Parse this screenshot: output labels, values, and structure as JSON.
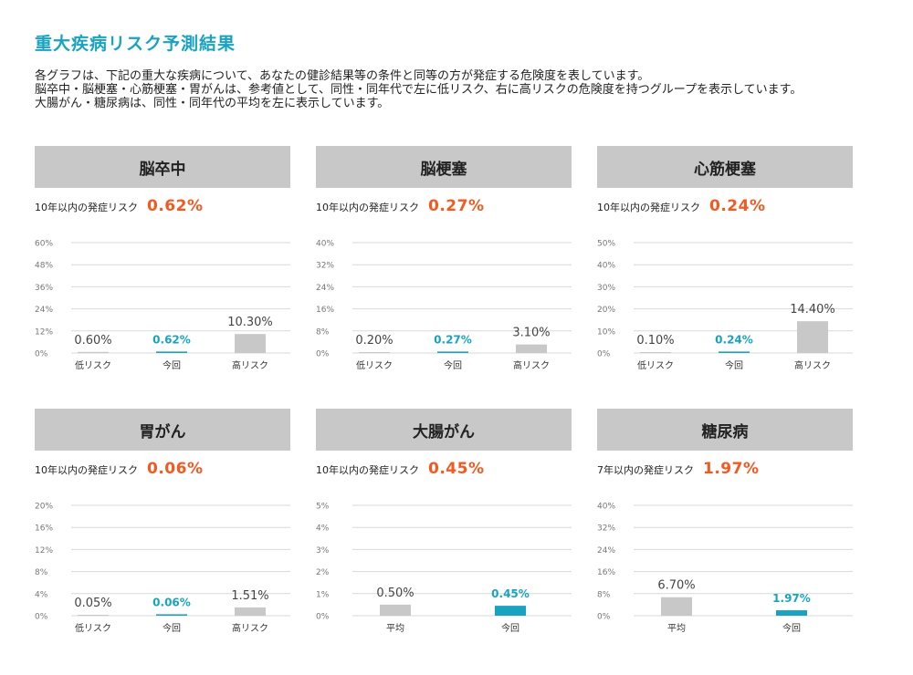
{
  "title": "重大疾病リスク予測結果",
  "description": [
    "各グラフは、下記の重大な疾病について、あなたの健診結果等の条件と同等の方が発症する危険度を表しています。",
    "脳卒中・脳梗塞・心筋梗塞・胃がんは、参考値として、同性・同年代で左に低リスク、右に高リスクの危険度を持つグループを表示しています。",
    "大腸がん・糖尿病は、同性・同年代の平均を左に表示しています。"
  ],
  "colors": {
    "accent": "#1aa3c0",
    "risk_value": "#f25a22",
    "bar_gray": "#c8c8c8",
    "bar_current": "#1aa3c0"
  },
  "panels": [
    {
      "name": "脳卒中",
      "risk_label": "10年以内の発症リスク",
      "risk_value": "0.62%"
    },
    {
      "name": "脳梗塞",
      "risk_label": "10年以内の発症リスク",
      "risk_value": "0.27%"
    },
    {
      "name": "心筋梗塞",
      "risk_label": "10年以内の発症リスク",
      "risk_value": "0.24%"
    },
    {
      "name": "胃がん",
      "risk_label": "10年以内の発症リスク",
      "risk_value": "0.06%"
    },
    {
      "name": "大腸がん",
      "risk_label": "10年以内の発症リスク",
      "risk_value": "0.45%"
    },
    {
      "name": "糖尿病",
      "risk_label": "7年以内の発症リスク",
      "risk_value": "1.97%"
    }
  ],
  "chart_data": [
    {
      "type": "bar",
      "title": "脳卒中",
      "ylim": [
        0,
        60
      ],
      "yticks": [
        "0%",
        "12%",
        "24%",
        "36%",
        "48%",
        "60%"
      ],
      "categories": [
        "低リスク",
        "今回",
        "高リスク"
      ],
      "values": [
        0.6,
        0.62,
        10.3
      ],
      "labels": [
        "0.60%",
        "0.62%",
        "10.30%"
      ],
      "highlight": "今回",
      "highlight_style": "line"
    },
    {
      "type": "bar",
      "title": "脳梗塞",
      "ylim": [
        0,
        40
      ],
      "yticks": [
        "0%",
        "8%",
        "16%",
        "24%",
        "32%",
        "40%"
      ],
      "categories": [
        "低リスク",
        "今回",
        "高リスク"
      ],
      "values": [
        0.2,
        0.27,
        3.1
      ],
      "labels": [
        "0.20%",
        "0.27%",
        "3.10%"
      ],
      "highlight": "今回",
      "highlight_style": "line"
    },
    {
      "type": "bar",
      "title": "心筋梗塞",
      "ylim": [
        0,
        50
      ],
      "yticks": [
        "0%",
        "10%",
        "20%",
        "30%",
        "40%",
        "50%"
      ],
      "categories": [
        "低リスク",
        "今回",
        "高リスク"
      ],
      "values": [
        0.1,
        0.24,
        14.4
      ],
      "labels": [
        "0.10%",
        "0.24%",
        "14.40%"
      ],
      "highlight": "今回",
      "highlight_style": "line"
    },
    {
      "type": "bar",
      "title": "胃がん",
      "ylim": [
        0,
        20
      ],
      "yticks": [
        "0%",
        "4%",
        "8%",
        "12%",
        "16%",
        "20%"
      ],
      "categories": [
        "低リスク",
        "今回",
        "高リスク"
      ],
      "values": [
        0.05,
        0.06,
        1.51
      ],
      "labels": [
        "0.05%",
        "0.06%",
        "1.51%"
      ],
      "highlight": "今回",
      "highlight_style": "line"
    },
    {
      "type": "bar",
      "title": "大腸がん",
      "ylim": [
        0,
        5
      ],
      "yticks": [
        "0%",
        "1%",
        "2%",
        "3%",
        "4%",
        "5%"
      ],
      "categories": [
        "平均",
        "今回"
      ],
      "values": [
        0.5,
        0.45
      ],
      "labels": [
        "0.50%",
        "0.45%"
      ],
      "highlight": "今回",
      "highlight_style": "bar"
    },
    {
      "type": "bar",
      "title": "糖尿病",
      "ylim": [
        0,
        40
      ],
      "yticks": [
        "0%",
        "8%",
        "16%",
        "24%",
        "32%",
        "40%"
      ],
      "categories": [
        "平均",
        "今回"
      ],
      "values": [
        6.7,
        1.97
      ],
      "labels": [
        "6.70%",
        "1.97%"
      ],
      "highlight": "今回",
      "highlight_style": "bar"
    }
  ]
}
